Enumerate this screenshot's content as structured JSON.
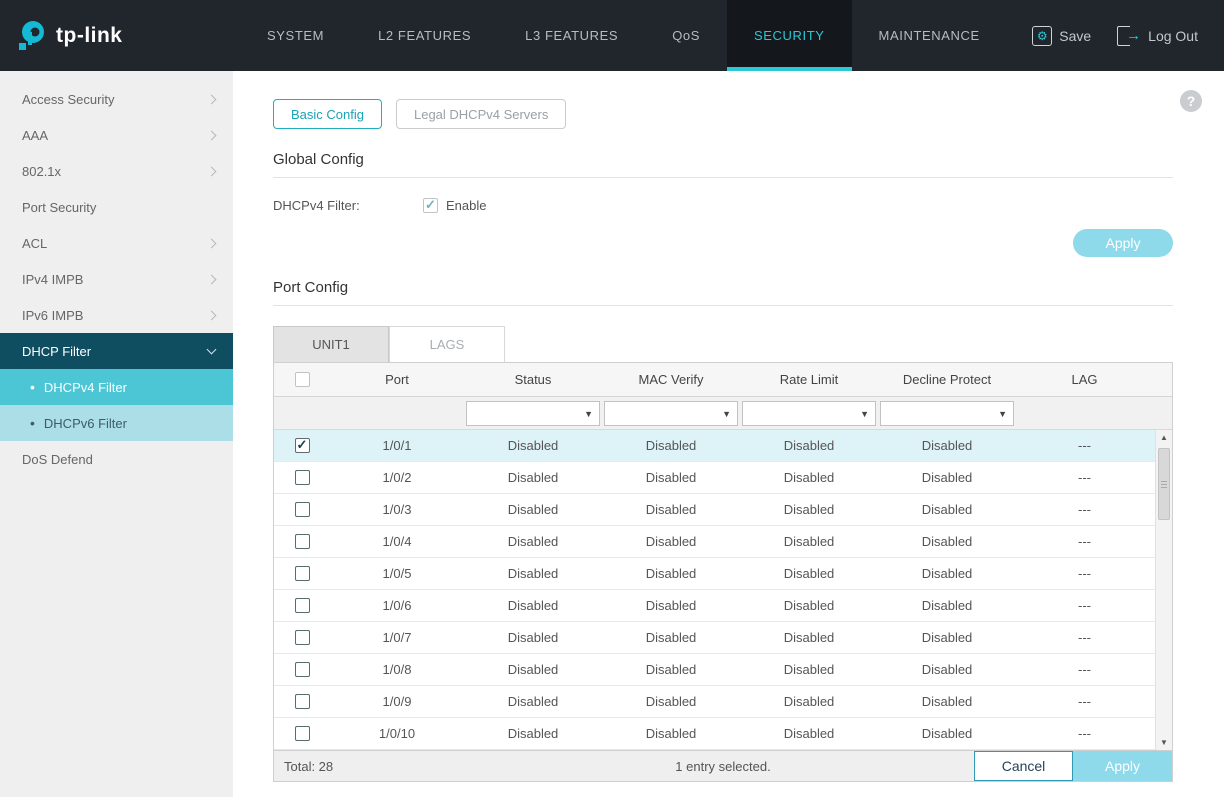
{
  "icons": {
    "save": "⚙",
    "logout": "→",
    "help": "?"
  },
  "header": {
    "brand": "tp-link",
    "nav": [
      {
        "label": "SYSTEM",
        "active": false
      },
      {
        "label": "L2 FEATURES",
        "active": false
      },
      {
        "label": "L3 FEATURES",
        "active": false
      },
      {
        "label": "QoS",
        "active": false
      },
      {
        "label": "SECURITY",
        "active": true
      },
      {
        "label": "MAINTENANCE",
        "active": false
      }
    ],
    "save_label": "Save",
    "logout_label": "Log Out"
  },
  "sidebar": {
    "items": [
      {
        "label": "Access Security",
        "type": "group",
        "chevron": "right"
      },
      {
        "label": "AAA",
        "type": "group",
        "chevron": "right"
      },
      {
        "label": "802.1x",
        "type": "group",
        "chevron": "right"
      },
      {
        "label": "Port Security",
        "type": "leaf"
      },
      {
        "label": "ACL",
        "type": "group",
        "chevron": "right"
      },
      {
        "label": "IPv4 IMPB",
        "type": "group",
        "chevron": "right"
      },
      {
        "label": "IPv6 IMPB",
        "type": "group",
        "chevron": "right"
      },
      {
        "label": "DHCP Filter",
        "type": "group",
        "chevron": "down",
        "active": true
      },
      {
        "label": "DHCPv4 Filter",
        "type": "sub",
        "selected": true
      },
      {
        "label": "DHCPv6 Filter",
        "type": "sub",
        "selected": false
      },
      {
        "label": "DoS Defend",
        "type": "leaf"
      }
    ]
  },
  "main": {
    "tabs": {
      "basic": "Basic Config",
      "legal": "Legal DHCPv4 Servers"
    },
    "global_config": {
      "title": "Global Config",
      "field_label": "DHCPv4 Filter:",
      "enable_label": "Enable",
      "enabled": true,
      "apply_label": "Apply"
    },
    "port_config": {
      "title": "Port Config",
      "unit_tab": "UNIT1",
      "lags_tab": "LAGS",
      "columns": [
        "Port",
        "Status",
        "MAC Verify",
        "Rate Limit",
        "Decline Protect",
        "LAG"
      ],
      "rows": [
        {
          "port": "1/0/1",
          "status": "Disabled",
          "mac_verify": "Disabled",
          "rate_limit": "Disabled",
          "decline_protect": "Disabled",
          "lag": "---",
          "selected": true
        },
        {
          "port": "1/0/2",
          "status": "Disabled",
          "mac_verify": "Disabled",
          "rate_limit": "Disabled",
          "decline_protect": "Disabled",
          "lag": "---",
          "selected": false
        },
        {
          "port": "1/0/3",
          "status": "Disabled",
          "mac_verify": "Disabled",
          "rate_limit": "Disabled",
          "decline_protect": "Disabled",
          "lag": "---",
          "selected": false
        },
        {
          "port": "1/0/4",
          "status": "Disabled",
          "mac_verify": "Disabled",
          "rate_limit": "Disabled",
          "decline_protect": "Disabled",
          "lag": "---",
          "selected": false
        },
        {
          "port": "1/0/5",
          "status": "Disabled",
          "mac_verify": "Disabled",
          "rate_limit": "Disabled",
          "decline_protect": "Disabled",
          "lag": "---",
          "selected": false
        },
        {
          "port": "1/0/6",
          "status": "Disabled",
          "mac_verify": "Disabled",
          "rate_limit": "Disabled",
          "decline_protect": "Disabled",
          "lag": "---",
          "selected": false
        },
        {
          "port": "1/0/7",
          "status": "Disabled",
          "mac_verify": "Disabled",
          "rate_limit": "Disabled",
          "decline_protect": "Disabled",
          "lag": "---",
          "selected": false
        },
        {
          "port": "1/0/8",
          "status": "Disabled",
          "mac_verify": "Disabled",
          "rate_limit": "Disabled",
          "decline_protect": "Disabled",
          "lag": "---",
          "selected": false
        },
        {
          "port": "1/0/9",
          "status": "Disabled",
          "mac_verify": "Disabled",
          "rate_limit": "Disabled",
          "decline_protect": "Disabled",
          "lag": "---",
          "selected": false
        },
        {
          "port": "1/0/10",
          "status": "Disabled",
          "mac_verify": "Disabled",
          "rate_limit": "Disabled",
          "decline_protect": "Disabled",
          "lag": "---",
          "selected": false
        }
      ],
      "footer": {
        "total": "Total: 28",
        "selection": "1 entry selected.",
        "cancel_label": "Cancel",
        "apply_label": "Apply"
      }
    }
  },
  "colors": {
    "accent": "#2bc8d6",
    "apply_button": "#8ed9ea",
    "selected_row": "#def3f8",
    "sidebar_active": "#0f4d60",
    "sub_selected": "#4cc6d4",
    "sub_item": "#abdee6",
    "topbar": "#21262c"
  }
}
